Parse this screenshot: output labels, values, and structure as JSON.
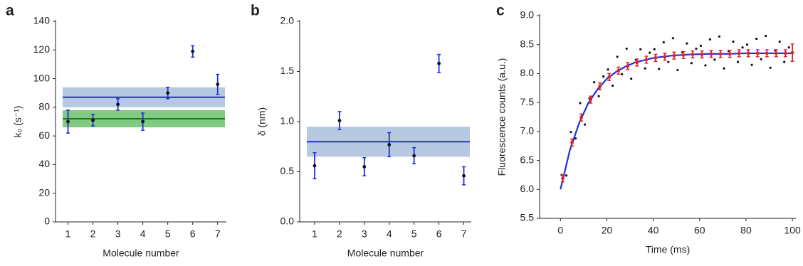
{
  "chart_data": [
    {
      "type": "scatter",
      "panel_label": "a",
      "xlabel": "Molecule number",
      "ylabel": "k₀ (s⁻¹)",
      "xlim": [
        0.5,
        7.35
      ],
      "ylim": [
        0,
        140
      ],
      "xticks": [
        1,
        2,
        3,
        4,
        5,
        6,
        7
      ],
      "yticks": [
        0,
        20,
        40,
        60,
        80,
        100,
        120,
        140
      ],
      "hlines": [
        {
          "value": 87,
          "band": [
            80,
            94
          ],
          "color": "#1f2fe0",
          "band_color": "#a9c0dc"
        },
        {
          "value": 72,
          "band": [
            66,
            78
          ],
          "color": "#1e7a1e",
          "band_color": "#6cbf6c"
        }
      ],
      "series": [
        {
          "style": "points",
          "x": [
            1,
            2,
            3,
            4,
            5,
            6,
            7
          ],
          "values": [
            70,
            71,
            82,
            70,
            90,
            119,
            96
          ],
          "errors": [
            8,
            4,
            4,
            6,
            4,
            4,
            7
          ],
          "color": "#111111",
          "error_color": "#1f2fe0"
        }
      ]
    },
    {
      "type": "scatter",
      "panel_label": "b",
      "xlabel": "Molecule number",
      "ylabel": "δ (nm)",
      "xlim": [
        0.4,
        7.3
      ],
      "ylim": [
        0,
        2
      ],
      "xticks": [
        1,
        2,
        3,
        4,
        5,
        6,
        7
      ],
      "yticks": [
        {
          "value": 0,
          "label": "0.0"
        },
        0.5,
        {
          "value": 1,
          "label": "1.0"
        },
        1.5,
        {
          "value": 2,
          "label": "2.0"
        }
      ],
      "hlines": [
        {
          "value": 0.8,
          "band": [
            0.65,
            0.95
          ],
          "color": "#1f2fe0",
          "band_color": "#a9c0dc"
        }
      ],
      "series": [
        {
          "style": "points",
          "x": [
            1,
            2,
            3,
            4,
            5,
            6,
            7
          ],
          "values": [
            0.56,
            1.01,
            0.55,
            0.77,
            0.66,
            1.58,
            0.46
          ],
          "errors": [
            0.13,
            0.09,
            0.09,
            0.12,
            0.08,
            0.09,
            0.09
          ],
          "color": "#111111",
          "error_color": "#1f2fe0"
        }
      ]
    },
    {
      "type": "scatter",
      "panel_label": "c",
      "xlabel": "Time (ms)",
      "ylabel": "Fluorescence counts (a.u.)",
      "xlim": [
        -9,
        101.5
      ],
      "ylim": [
        5.5,
        9
      ],
      "xticks": [
        0,
        20,
        40,
        60,
        80,
        100
      ],
      "yticks": [
        5.5,
        {
          "value": 6,
          "label": "6.0"
        },
        6.5,
        {
          "value": 7,
          "label": "7.0"
        },
        7.5,
        {
          "value": 8,
          "label": "8.0"
        },
        8.5,
        {
          "value": 9,
          "label": "9.0"
        }
      ],
      "hlines": [],
      "series": [
        {
          "style": "points",
          "x": [
            0.5,
            2.5,
            4.5,
            6.5,
            8.5,
            10.5,
            12.5,
            14.5,
            16.5,
            18.5,
            20.5,
            22.5,
            24.5,
            26.5,
            28.5,
            30.5,
            32.5,
            34.5,
            36.5,
            38.5,
            40.5,
            42.5,
            44.5,
            46.5,
            48.5,
            50.5,
            52.5,
            54.5,
            56.5,
            58.5,
            60.5,
            62.5,
            64.5,
            66.5,
            68.5,
            70.5,
            72.5,
            74.5,
            76.5,
            78.5,
            80.5,
            82.5,
            84.5,
            86.5,
            88.5,
            90.5,
            92.5,
            94.5,
            96.5,
            98.5
          ],
          "values": [
            6.25,
            6.24,
            6.99,
            6.88,
            7.49,
            7.12,
            7.57,
            7.85,
            7.61,
            7.95,
            8.07,
            7.79,
            8.29,
            7.99,
            8.43,
            7.91,
            8.24,
            8.42,
            8.09,
            8.36,
            8.42,
            8.08,
            8.54,
            8.2,
            8.61,
            8.06,
            8.37,
            8.52,
            8.18,
            8.43,
            8.48,
            8.14,
            8.59,
            8.24,
            8.64,
            8.09,
            8.39,
            8.55,
            8.2,
            8.45,
            8.5,
            8.15,
            8.6,
            8.25,
            8.65,
            8.1,
            8.4,
            8.55,
            8.2,
            8.45
          ],
          "color": "#111111",
          "radius": 1.6
        },
        {
          "style": "line",
          "x": [
            0,
            4,
            8,
            12,
            16,
            20,
            24,
            28,
            32,
            36,
            40,
            48,
            56,
            64,
            72,
            80,
            90,
            100
          ],
          "values": [
            6.0,
            6.67,
            7.14,
            7.49,
            7.73,
            7.91,
            8.03,
            8.12,
            8.19,
            8.23,
            8.27,
            8.31,
            8.33,
            8.34,
            8.34,
            8.35,
            8.35,
            8.35
          ],
          "color": "#1f2fe0"
        },
        {
          "style": "points",
          "x": [
            1,
            5,
            9,
            13,
            17,
            21,
            25,
            29,
            33,
            37,
            41,
            45,
            49,
            53,
            57,
            61,
            65,
            69,
            73,
            77,
            81,
            85,
            89,
            93,
            97,
            100
          ],
          "values": [
            6.19,
            6.81,
            7.24,
            7.55,
            7.78,
            7.94,
            8.05,
            8.13,
            8.19,
            8.24,
            8.27,
            8.29,
            8.31,
            8.32,
            8.33,
            8.33,
            8.34,
            8.34,
            8.34,
            8.35,
            8.35,
            8.35,
            8.35,
            8.35,
            8.35,
            8.36
          ],
          "errors": [
            0.06,
            0.06,
            0.06,
            0.06,
            0.06,
            0.06,
            0.06,
            0.06,
            0.06,
            0.06,
            0.06,
            0.06,
            0.06,
            0.06,
            0.06,
            0.06,
            0.06,
            0.06,
            0.06,
            0.06,
            0.06,
            0.06,
            0.06,
            0.06,
            0.06,
            0.15
          ],
          "color": "#e0242a",
          "error_color": "#e0242a",
          "radius": 2.4
        }
      ]
    }
  ]
}
